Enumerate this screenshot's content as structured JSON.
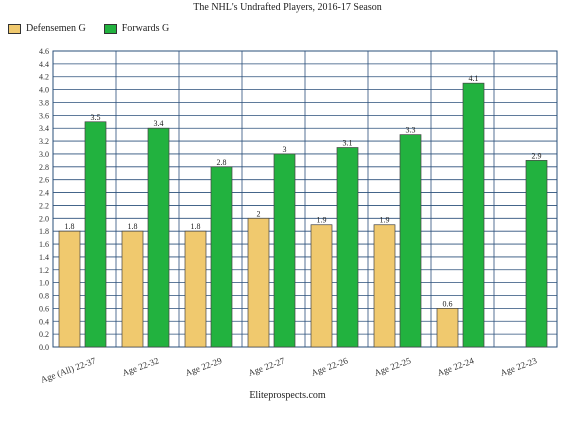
{
  "chart_data": {
    "type": "bar",
    "title": "The NHL's Undrafted Players, 2016-17 Season",
    "source": "Eliteprospects.com",
    "xlabel": "",
    "ylabel": "",
    "ylim": [
      0,
      4.6
    ],
    "ytick_step": 0.2,
    "grid": true,
    "legend_position": "top-left",
    "categories": [
      "Age (All) 22-37",
      "Age 22-32",
      "Age 22-29",
      "Age 22-27",
      "Age 22-26",
      "Age 22-25",
      "Age 22-24",
      "Age 22-23"
    ],
    "series": [
      {
        "name": "Defensemen G",
        "color": "#f0c96e",
        "values": [
          1.8,
          1.8,
          1.8,
          2,
          1.9,
          1.9,
          0.6,
          null
        ]
      },
      {
        "name": "Forwards G",
        "color": "#22b23f",
        "values": [
          3.5,
          3.4,
          2.8,
          3,
          3.1,
          3.3,
          4.1,
          2.9
        ]
      }
    ],
    "grid_color": "#2a4f7a"
  }
}
